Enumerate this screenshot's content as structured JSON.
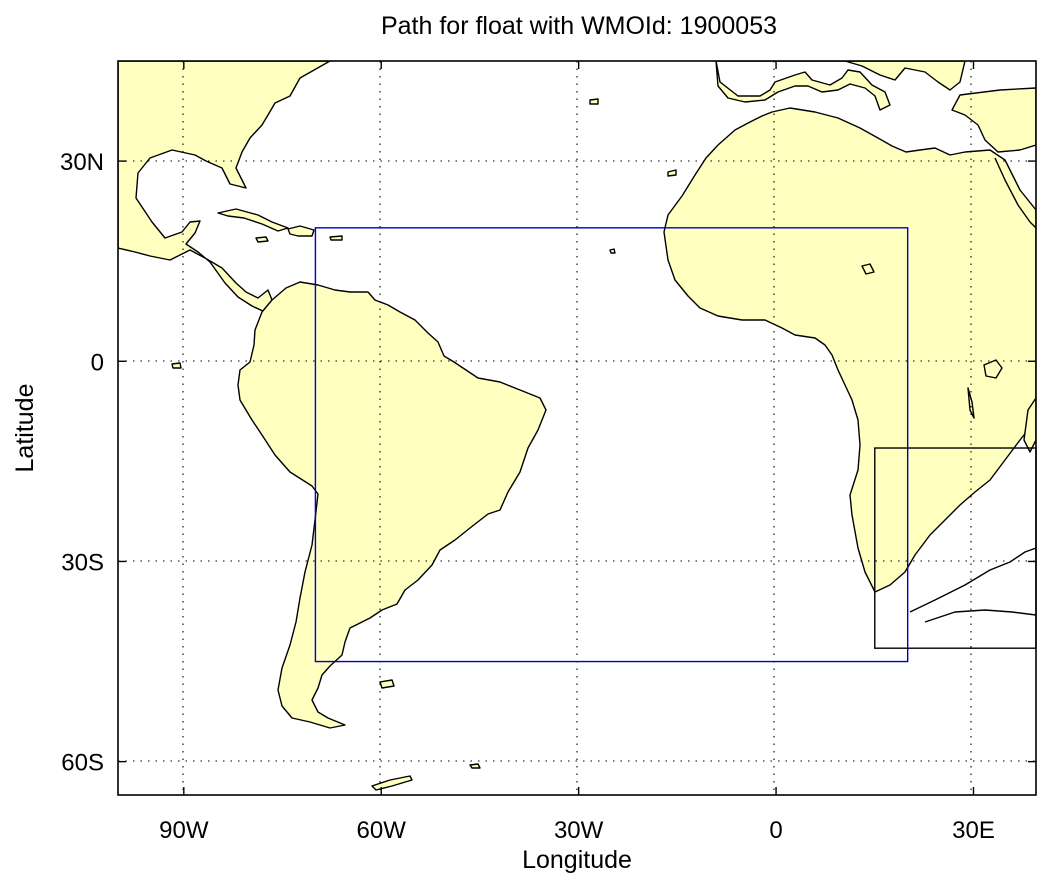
{
  "title": "Path for float with WMOId: 1900053",
  "x_axis": {
    "label": "Longitude",
    "ticks": [
      {
        "value": -90,
        "label": "90W"
      },
      {
        "value": -60,
        "label": "60W"
      },
      {
        "value": -30,
        "label": "30W"
      },
      {
        "value": 0,
        "label": "0"
      },
      {
        "value": 30,
        "label": "30E"
      }
    ]
  },
  "y_axis": {
    "label": "Latitude",
    "ticks": [
      {
        "value": 30,
        "label": "30N"
      },
      {
        "value": 0,
        "label": "0"
      },
      {
        "value": -30,
        "label": "30S"
      },
      {
        "value": -60,
        "label": "60S"
      }
    ]
  },
  "map_extent": {
    "lon": [
      -100,
      39.5
    ],
    "lat": [
      -65,
      45
    ]
  },
  "grid": true,
  "land_color": "#ffffc0",
  "ocean_color": "#ffffff",
  "regions": [
    {
      "name": "",
      "color": "#0000cc",
      "lon": [
        -70,
        20
      ],
      "lat": [
        -45,
        20
      ]
    },
    {
      "name": "",
      "color": "#000000",
      "lon": [
        15,
        40
      ],
      "lat": [
        -43,
        -13
      ]
    }
  ],
  "float_path": []
}
